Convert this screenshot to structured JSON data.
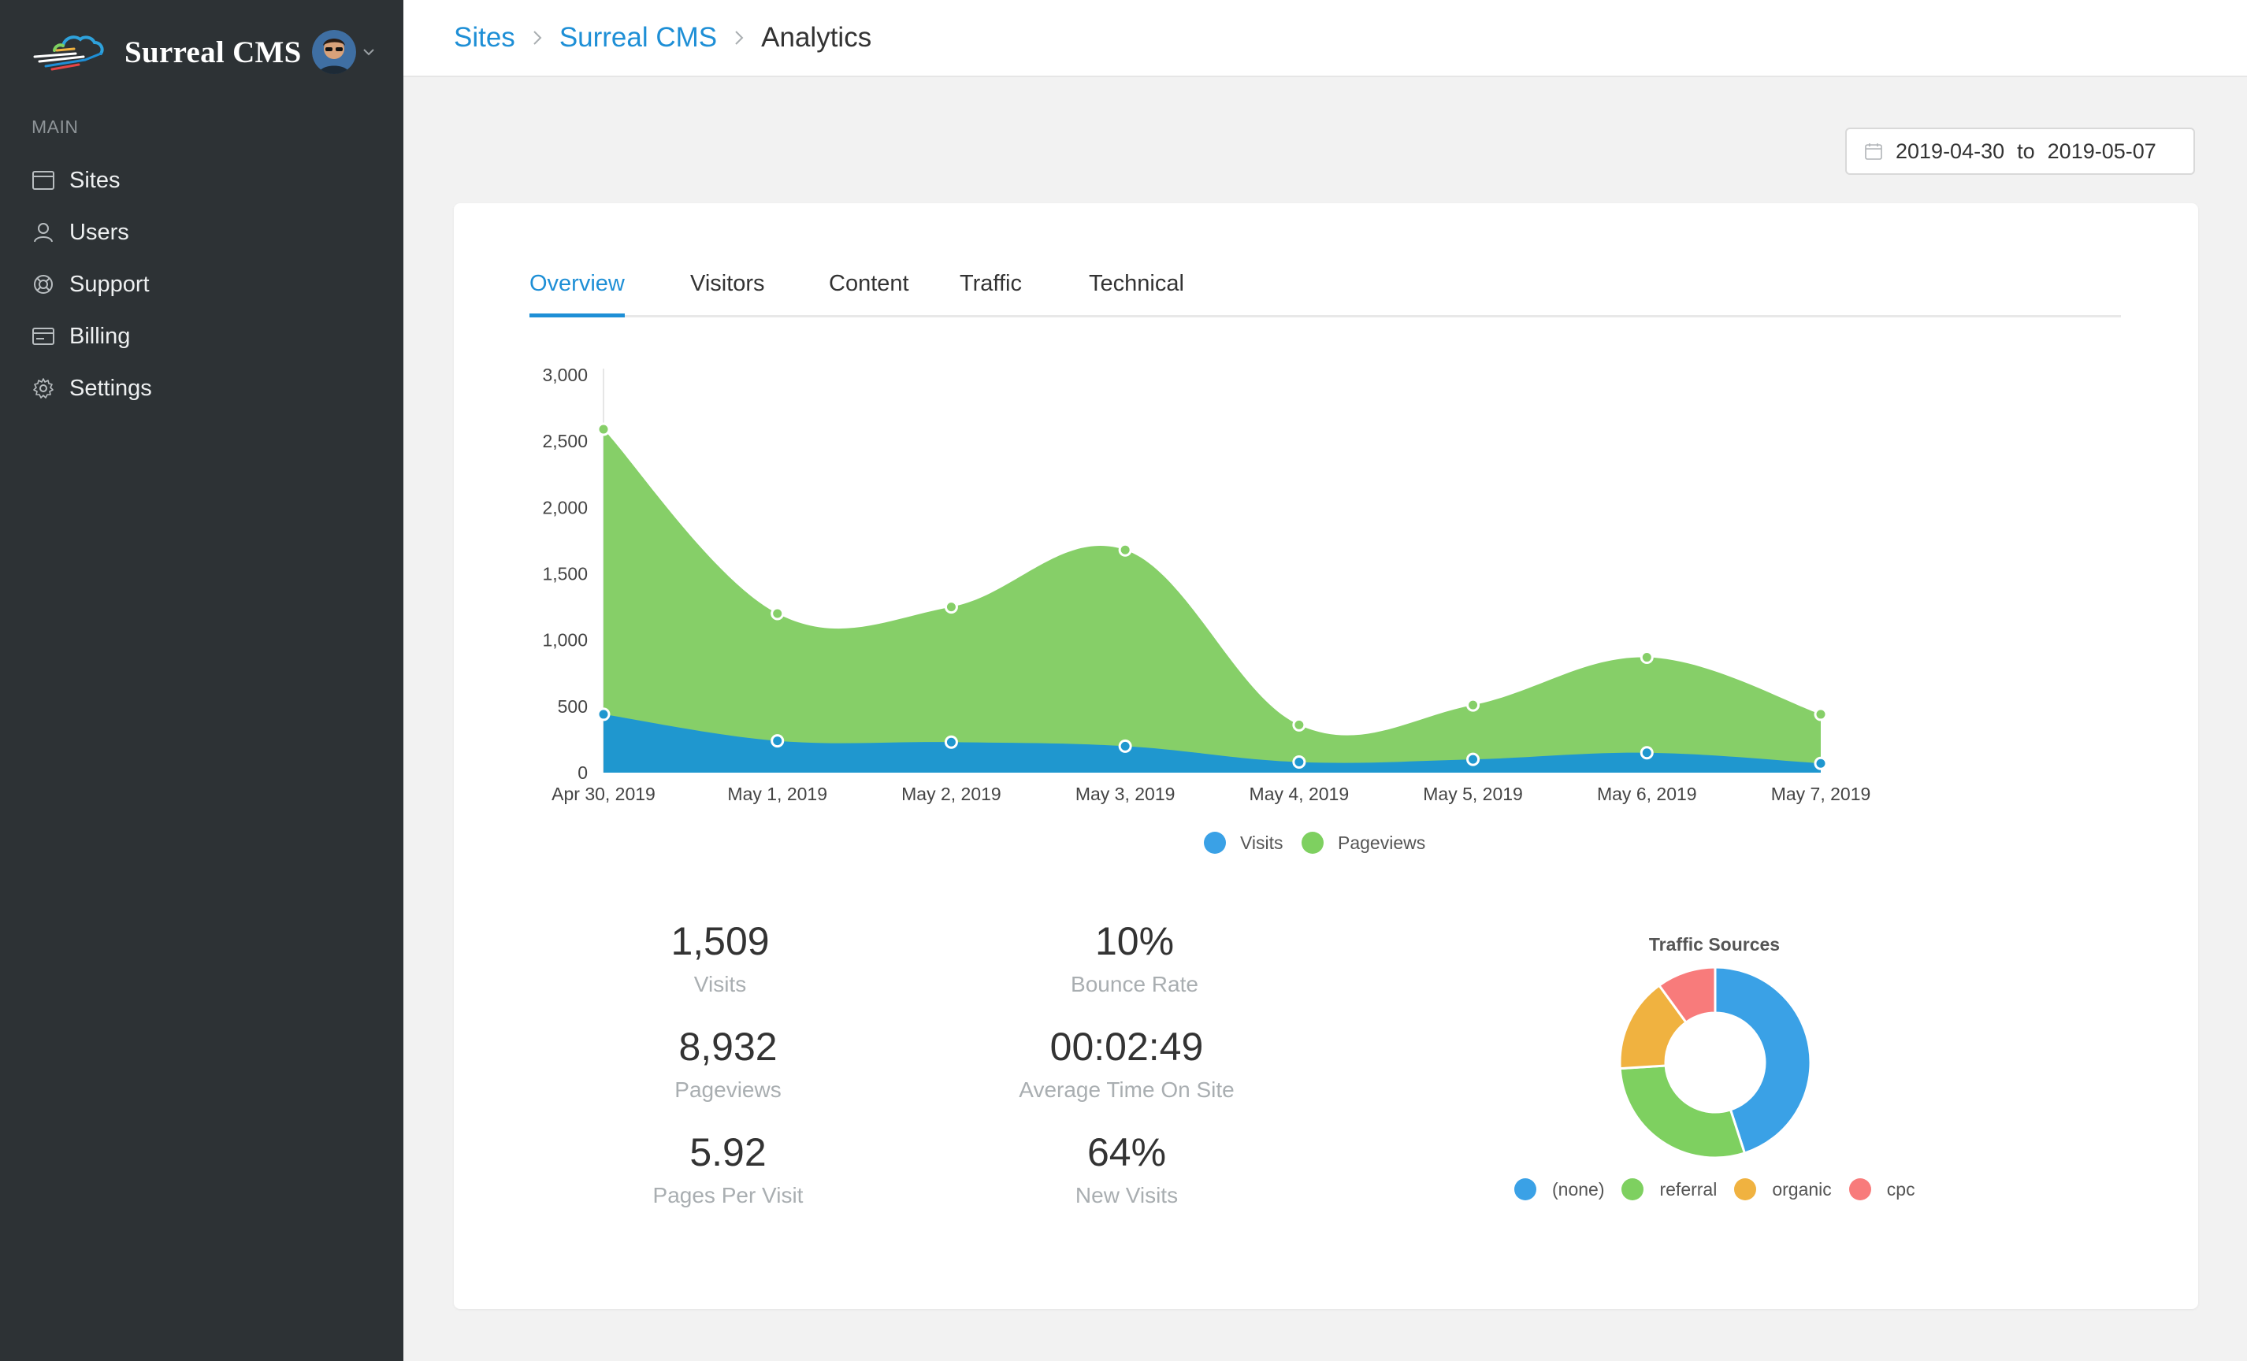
{
  "app": {
    "name": "Surreal CMS"
  },
  "sidebar": {
    "section_label": "MAIN",
    "items": [
      {
        "label": "Sites",
        "icon": "browser-window-icon"
      },
      {
        "label": "Users",
        "icon": "user-icon"
      },
      {
        "label": "Support",
        "icon": "lifebuoy-icon"
      },
      {
        "label": "Billing",
        "icon": "credit-card-icon"
      },
      {
        "label": "Settings",
        "icon": "gear-icon"
      }
    ]
  },
  "breadcrumb": {
    "items": [
      "Sites",
      "Surreal CMS"
    ],
    "current": "Analytics"
  },
  "date_range": {
    "from": "2019-04-30",
    "separator": "to",
    "to": "2019-05-07"
  },
  "tabs": [
    {
      "label": "Overview",
      "active": true
    },
    {
      "label": "Visitors",
      "active": false
    },
    {
      "label": "Content",
      "active": false
    },
    {
      "label": "Traffic",
      "active": false
    },
    {
      "label": "Technical",
      "active": false
    }
  ],
  "stats": [
    {
      "value": "1,509",
      "label": "Visits"
    },
    {
      "value": "8,932",
      "label": "Pageviews"
    },
    {
      "value": "5.92",
      "label": "Pages Per Visit"
    },
    {
      "value": "10%",
      "label": "Bounce Rate"
    },
    {
      "value": "00:02:49",
      "label": "Average Time On Site"
    },
    {
      "value": "64%",
      "label": "New Visits"
    }
  ],
  "colors": {
    "accent": "#1e8fd6",
    "sidebar_bg": "#2d3235",
    "visits": "#1f97cf",
    "pageviews": "#86cf68"
  },
  "chart_data": [
    {
      "type": "area",
      "x": [
        "Apr 30, 2019",
        "May 1, 2019",
        "May 2, 2019",
        "May 3, 2019",
        "May 4, 2019",
        "May 5, 2019",
        "May 6, 2019",
        "May 7, 2019"
      ],
      "yticks": [
        "0",
        "500",
        "1,000",
        "1,500",
        "2,000",
        "2,500",
        "3,000"
      ],
      "ylim": [
        0,
        3000
      ],
      "legend_position": "bottom",
      "series": [
        {
          "name": "Visits",
          "color": "#1f97cf",
          "legend_color": "#3aa1e6",
          "values": [
            440,
            240,
            230,
            200,
            80,
            100,
            150,
            70
          ]
        },
        {
          "name": "Pageviews",
          "color": "#86cf68",
          "legend_color": "#7ed060",
          "values": [
            2590,
            1200,
            1250,
            1680,
            360,
            510,
            870,
            440
          ]
        }
      ]
    },
    {
      "type": "pie",
      "title": "Traffic Sources",
      "legend_position": "bottom",
      "labels": [
        "(none)",
        "referral",
        "organic",
        "cpc"
      ],
      "values": [
        45,
        29,
        16,
        10
      ],
      "colors": [
        "#3aa1e6",
        "#7ed060",
        "#f0b240",
        "#f87b7b"
      ]
    }
  ]
}
